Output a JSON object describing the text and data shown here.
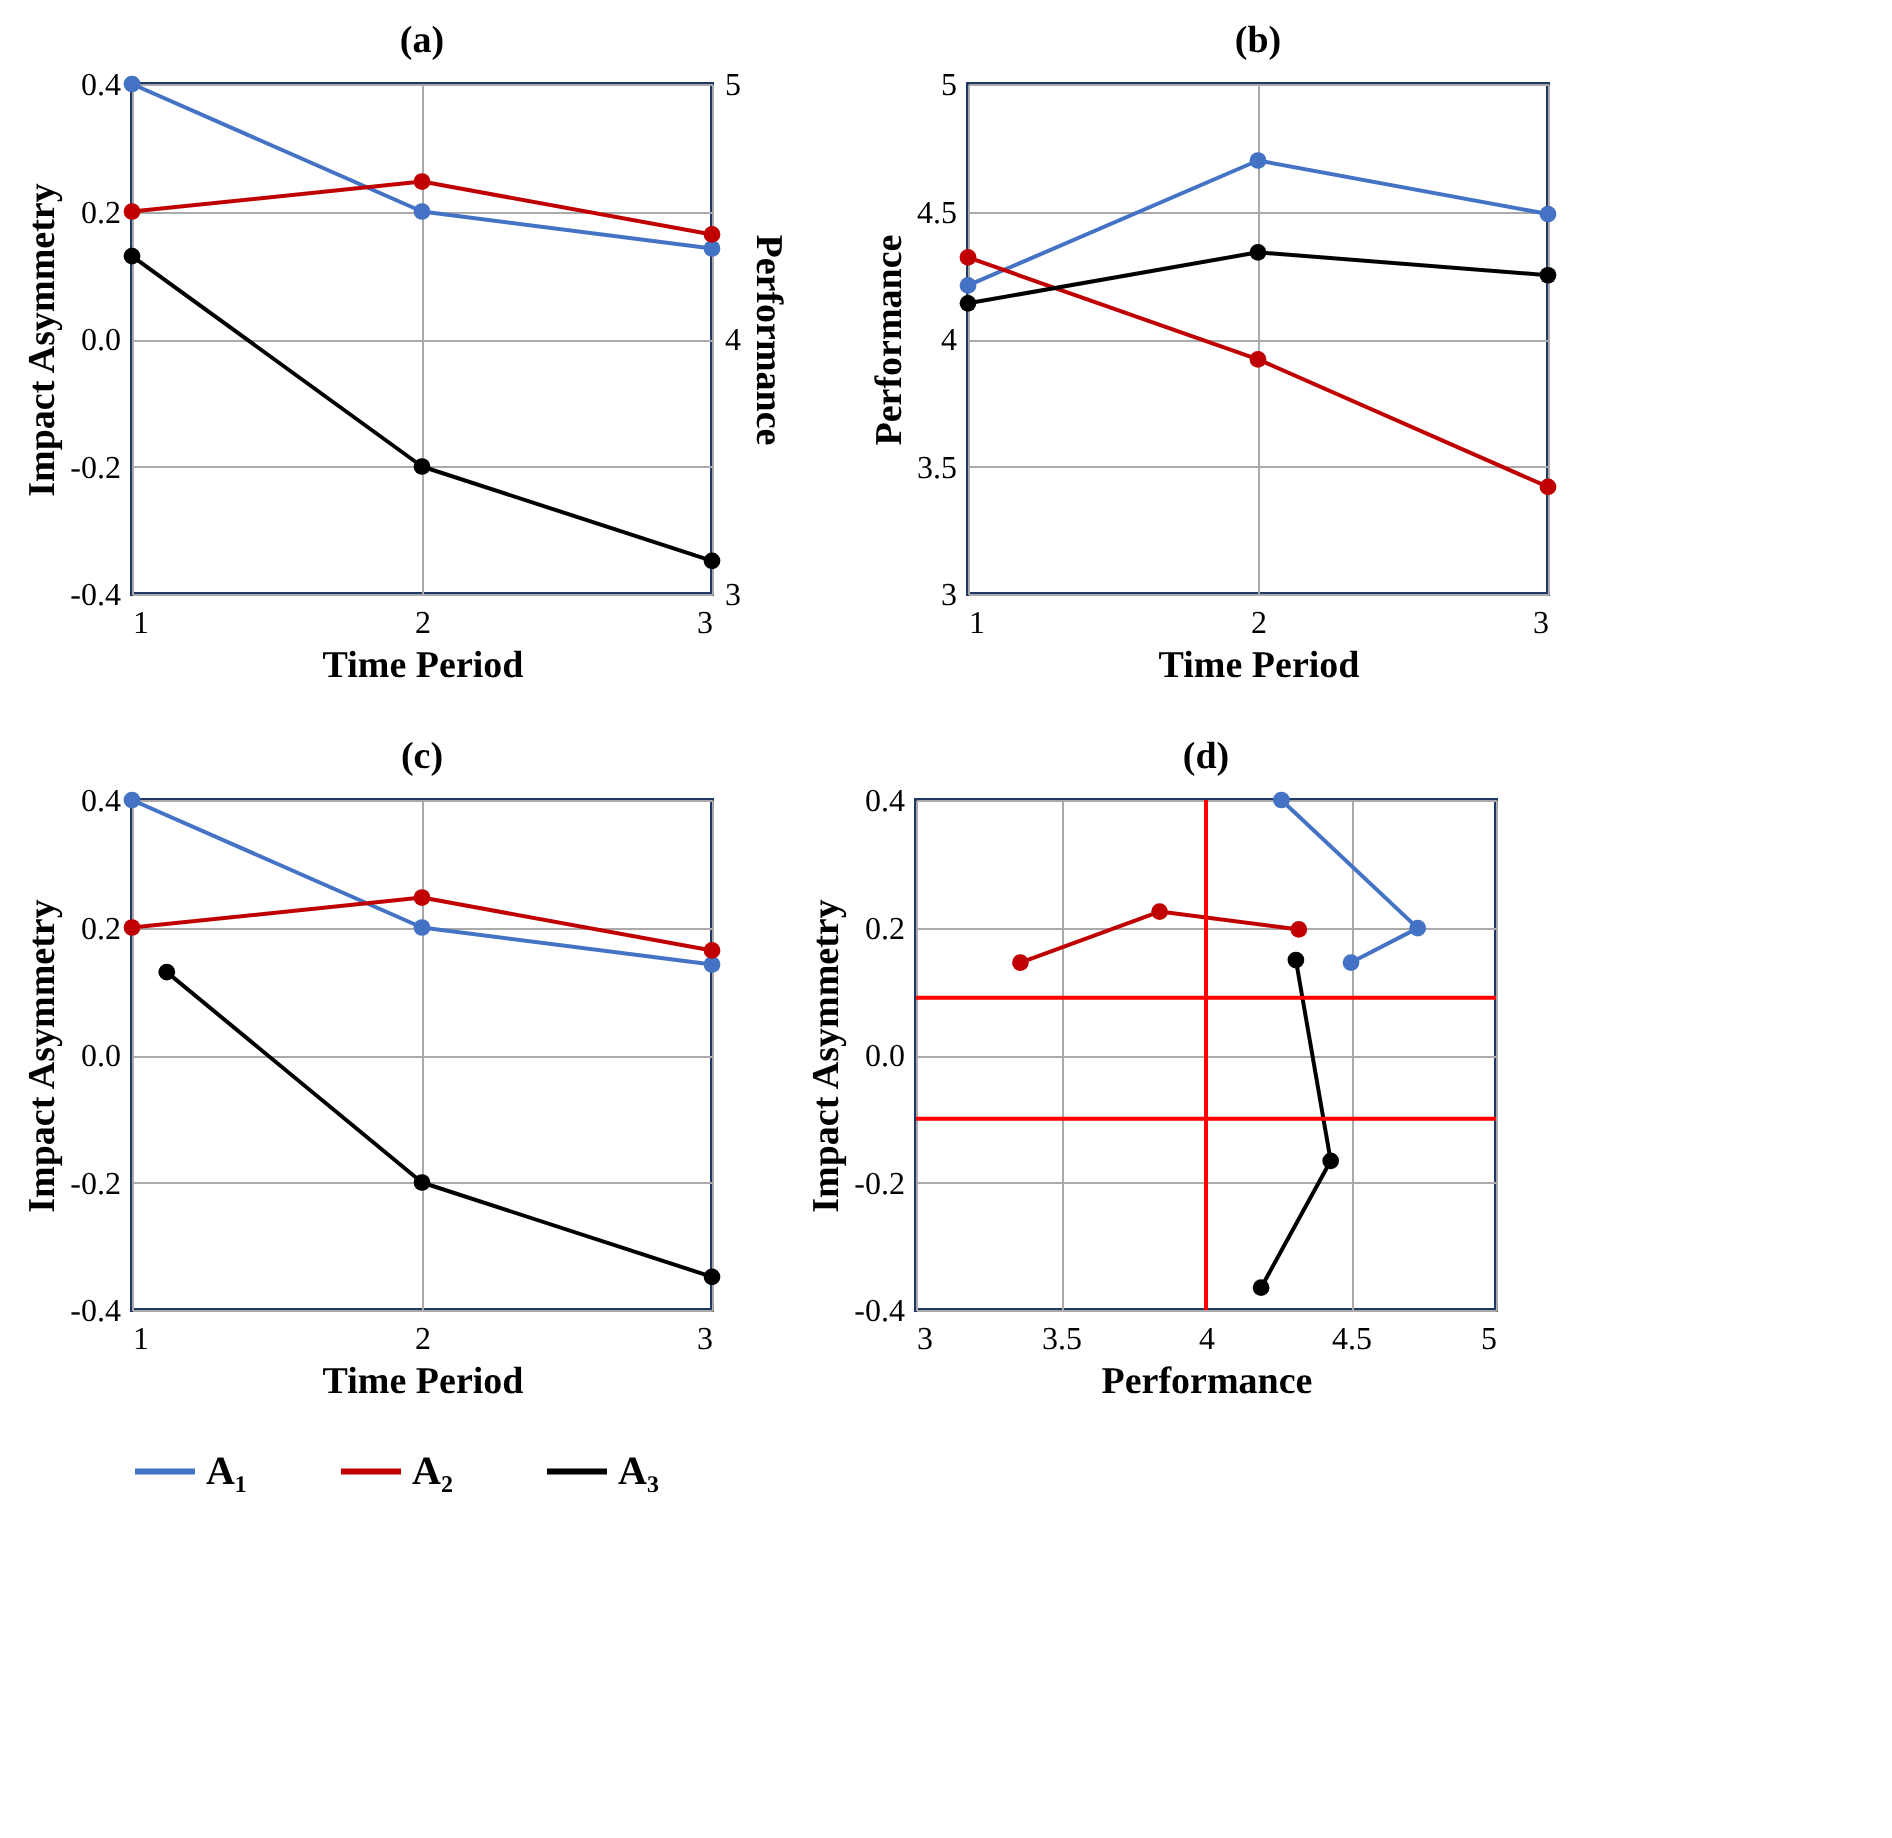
{
  "chart_data": [
    {
      "type": "line",
      "title": "(a)",
      "xlabel": "Time Period",
      "ylabel": "Impact Asymmetry",
      "y2label": "Performance",
      "x": [
        1,
        2,
        3
      ],
      "xlim": [
        1,
        3
      ],
      "xticks": [
        1,
        2,
        3
      ],
      "ylim": [
        -0.4,
        0.4
      ],
      "yticks": [
        {
          "value": -0.4,
          "label": "-0.4"
        },
        {
          "value": -0.2,
          "label": "-0.2"
        },
        {
          "value": 0,
          "label": "0.0"
        },
        {
          "value": 0.2,
          "label": "0.2"
        },
        {
          "value": 0.4,
          "label": "0.4"
        }
      ],
      "y2lim": [
        3,
        5
      ],
      "y2ticks": [
        3,
        4,
        5
      ],
      "grid": true,
      "marker": "circle",
      "legend": "bottom",
      "series": [
        {
          "name": "A₁",
          "color": "#4472c4",
          "values": [
            0.4,
            0.2,
            0.142
          ]
        },
        {
          "name": "A₂",
          "color": "#c00000",
          "values": [
            0.2,
            0.247,
            0.164
          ]
        },
        {
          "name": "A₃",
          "color": "#000000",
          "values": [
            0.13,
            -0.2,
            -0.348
          ]
        }
      ]
    },
    {
      "type": "line",
      "title": "(b)",
      "xlabel": "Time Period",
      "ylabel": "Performance",
      "x": [
        1,
        2,
        3
      ],
      "xlim": [
        1,
        3
      ],
      "xticks": [
        1,
        2,
        3
      ],
      "ylim": [
        3,
        5
      ],
      "yticks": [
        3,
        3.5,
        4,
        4.5,
        5
      ],
      "grid": true,
      "marker": "circle",
      "legend": "bottom",
      "series": [
        {
          "name": "A₁",
          "color": "#4472c4",
          "values": [
            4.21,
            4.7,
            4.49
          ]
        },
        {
          "name": "A₂",
          "color": "#c00000",
          "values": [
            4.32,
            3.92,
            3.42
          ]
        },
        {
          "name": "A₃",
          "color": "#000000",
          "values": [
            4.14,
            4.34,
            4.25
          ]
        }
      ]
    },
    {
      "type": "line",
      "title": "(c)",
      "xlabel": "Time Period",
      "ylabel": "Impact Asymmetry",
      "xlim": [
        1,
        3
      ],
      "xticks": [
        1,
        2,
        3
      ],
      "ylim": [
        -0.4,
        0.4
      ],
      "yticks": [
        {
          "value": -0.4,
          "label": "-0.4"
        },
        {
          "value": -0.2,
          "label": "-0.2"
        },
        {
          "value": 0,
          "label": "0.0"
        },
        {
          "value": 0.2,
          "label": "0.2"
        },
        {
          "value": 0.4,
          "label": "0.4"
        }
      ],
      "grid": true,
      "marker": "circle",
      "legend": "bottom",
      "series": [
        {
          "name": "A₁",
          "color": "#4472c4",
          "x": [
            1,
            2,
            3
          ],
          "values": [
            0.4,
            0.2,
            0.142
          ]
        },
        {
          "name": "A₂",
          "color": "#c00000",
          "x": [
            1,
            2,
            3
          ],
          "values": [
            0.2,
            0.247,
            0.164
          ]
        },
        {
          "name": "A₃",
          "color": "#000000",
          "x": [
            1.12,
            2,
            3
          ],
          "values": [
            0.13,
            -0.2,
            -0.348
          ]
        }
      ]
    },
    {
      "type": "line",
      "title": "(d)",
      "xlabel": "Performance",
      "ylabel": "Impact Asymmetry",
      "xlim": [
        3,
        5
      ],
      "xticks": [
        3,
        3.5,
        4,
        4.5,
        5
      ],
      "ylim": [
        -0.4,
        0.4
      ],
      "yticks": [
        {
          "value": -0.4,
          "label": "-0.4"
        },
        {
          "value": -0.2,
          "label": "-0.2"
        },
        {
          "value": 0,
          "label": "0.0"
        },
        {
          "value": 0.2,
          "label": "0.2"
        },
        {
          "value": 0.4,
          "label": "0.4"
        }
      ],
      "grid": true,
      "marker": "circle",
      "legend": "bottom",
      "series": [
        {
          "name": "A₁",
          "color": "#4472c4",
          "x": [
            4.26,
            4.73,
            4.5
          ],
          "values": [
            0.4,
            0.199,
            0.145
          ]
        },
        {
          "name": "A₂",
          "color": "#c00000",
          "x": [
            4.32,
            3.84,
            3.36
          ],
          "values": [
            0.197,
            0.225,
            0.145
          ]
        },
        {
          "name": "A₃",
          "color": "#000000",
          "x": [
            4.31,
            4.43,
            4.19
          ],
          "values": [
            0.149,
            -0.166,
            -0.365
          ]
        }
      ],
      "ref_lines": [
        {
          "axis": "x",
          "value": 4,
          "color": "#ff0000"
        },
        {
          "axis": "y",
          "value": 0.09,
          "color": "#ff0000"
        },
        {
          "axis": "y",
          "value": -0.1,
          "color": "#ff0000"
        }
      ]
    }
  ]
}
